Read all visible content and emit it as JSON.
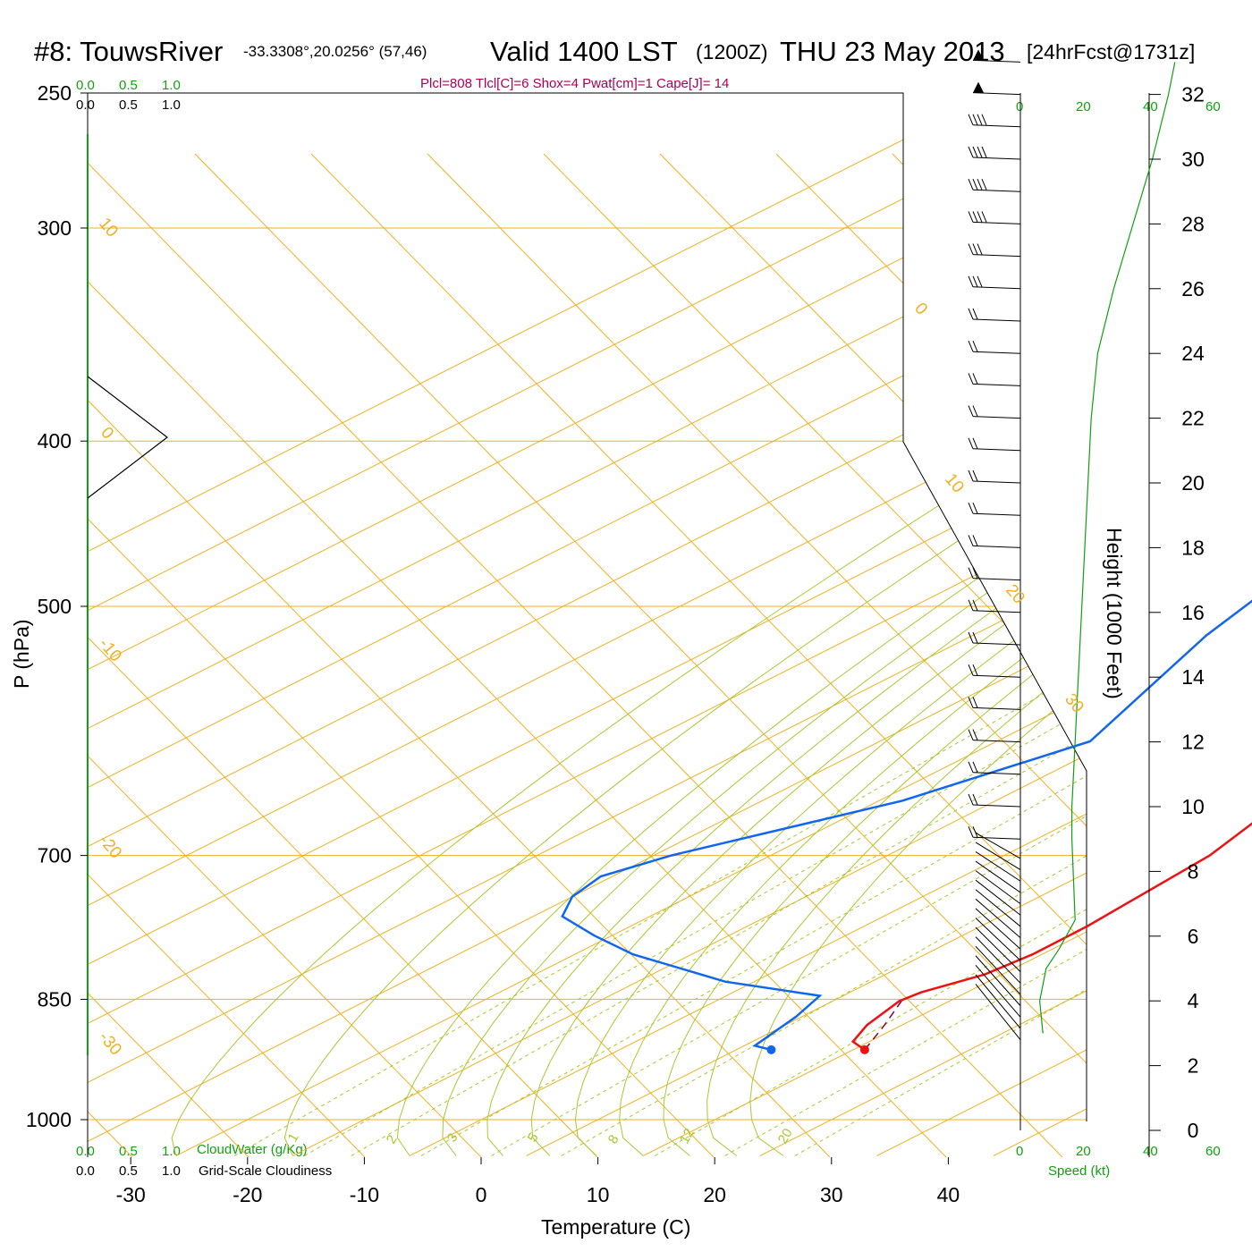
{
  "header": {
    "station": "#8: TouwsRiver",
    "coords": "-33.3308°,20.0256° (57,46)",
    "valid": "Valid 1400 LST",
    "zulu": "(1200Z)",
    "date": "THU 23 May 2013",
    "forecast": "[24hrFcst@1731z]",
    "indices": "Plcl=808 Tlcl[C]=6 Shox=4 Pwat[cm]=1 Cape[J]= 14"
  },
  "scale_labels": {
    "cloud_ticks": [
      "0.0",
      "0.5",
      "1.0"
    ],
    "cloudwater_label": "CloudWater (g/Kg)",
    "cloudiness_label": "Grid-Scale Cloudiness",
    "speed_label": "Speed (kt)",
    "speed_ticks": [
      "0",
      "20",
      "40",
      "60"
    ]
  },
  "colors": {
    "temperature": "#ee1111",
    "dewpoint": "#1166ee",
    "isotherm": "#f0b020",
    "adiabat": "#a8c830",
    "speed": "#11a011",
    "parcel": "#880033"
  },
  "chart_data": {
    "type": "skew-t log-p sounding",
    "xlabel": "Temperature (C)",
    "ylabel": "P (hPa)",
    "height_axis_label": "Height (1000 Feet)",
    "x_ticks": [
      -30,
      -20,
      -10,
      0,
      10,
      20,
      30,
      40
    ],
    "pressure_ticks": [
      250,
      300,
      400,
      500,
      700,
      850,
      1000
    ],
    "height_ticks": [
      0,
      2,
      4,
      6,
      8,
      10,
      12,
      14,
      16,
      18,
      20,
      22,
      24,
      26,
      28,
      30,
      32
    ],
    "isotherm_labels": [
      "10",
      "0",
      "-10",
      "-20",
      "-30",
      "0",
      "10",
      "20",
      "30"
    ],
    "mixing_ratio_labels": [
      "1",
      "2",
      "3",
      "5",
      "8",
      "12",
      "20"
    ],
    "surface": {
      "pressure_hpa": 910,
      "temperature_c": 21,
      "dewpoint_c": 13
    },
    "temperature_profile": [
      {
        "p": 910,
        "t": 21.0
      },
      {
        "p": 900,
        "t": 18.6
      },
      {
        "p": 880,
        "t": 17.0
      },
      {
        "p": 852,
        "t": 15.7
      },
      {
        "p": 842,
        "t": 16.1
      },
      {
        "p": 822,
        "t": 18.5
      },
      {
        "p": 800,
        "t": 19.2
      },
      {
        "p": 770,
        "t": 19.1
      },
      {
        "p": 700,
        "t": 17.6
      },
      {
        "p": 600,
        "t": 11.2
      },
      {
        "p": 500,
        "t": 3.4
      },
      {
        "p": 400,
        "t": -5.1
      },
      {
        "p": 300,
        "t": -20.0
      },
      {
        "p": 260,
        "t": -30.0
      }
    ],
    "dewpoint_profile": [
      {
        "p": 910,
        "t": 13.0
      },
      {
        "p": 905,
        "t": 10.9
      },
      {
        "p": 870,
        "t": 9.5
      },
      {
        "p": 846,
        "t": 8.0
      },
      {
        "p": 830,
        "t": -2.5
      },
      {
        "p": 800,
        "t": -15.0
      },
      {
        "p": 780,
        "t": -21.5
      },
      {
        "p": 760,
        "t": -27.5
      },
      {
        "p": 740,
        "t": -30.0
      },
      {
        "p": 720,
        "t": -31.0
      },
      {
        "p": 700,
        "t": -28.5
      },
      {
        "p": 650,
        "t": -18.0
      },
      {
        "p": 600,
        "t": -12.0
      },
      {
        "p": 520,
        "t": -20.0
      },
      {
        "p": 450,
        "t": -26.0
      },
      {
        "p": 400,
        "t": -32.0
      },
      {
        "p": 370,
        "t": -40.0
      },
      {
        "p": 320,
        "t": -58.0
      },
      {
        "p": 300,
        "t": -65.0
      },
      {
        "p": 280,
        "t": -67.0
      },
      {
        "p": 260,
        "t": -70.0
      }
    ],
    "parcel_path": [
      {
        "p": 910,
        "t": 21.0
      },
      {
        "p": 880,
        "t": 18.5
      },
      {
        "p": 850,
        "t": 15.7
      }
    ],
    "lcl": {
      "pressure_hpa": 808,
      "temperature_c": 6
    },
    "wind_speed_profile_kt": [
      {
        "h_kft": 3.0,
        "v": 7
      },
      {
        "h_kft": 4.0,
        "v": 6
      },
      {
        "h_kft": 5.0,
        "v": 8
      },
      {
        "h_kft": 5.6,
        "v": 12
      },
      {
        "h_kft": 6.5,
        "v": 17
      },
      {
        "h_kft": 9.0,
        "v": 16
      },
      {
        "h_kft": 10.0,
        "v": 16
      },
      {
        "h_kft": 12.0,
        "v": 17
      },
      {
        "h_kft": 14.0,
        "v": 18
      },
      {
        "h_kft": 16.0,
        "v": 19
      },
      {
        "h_kft": 18.0,
        "v": 20
      },
      {
        "h_kft": 20.0,
        "v": 21
      },
      {
        "h_kft": 22.0,
        "v": 22
      },
      {
        "h_kft": 24.0,
        "v": 24
      },
      {
        "h_kft": 26.0,
        "v": 29
      },
      {
        "h_kft": 28.0,
        "v": 35
      },
      {
        "h_kft": 30.0,
        "v": 41
      },
      {
        "h_kft": 32.0,
        "v": 46
      },
      {
        "h_kft": 33.0,
        "v": 48
      }
    ]
  }
}
